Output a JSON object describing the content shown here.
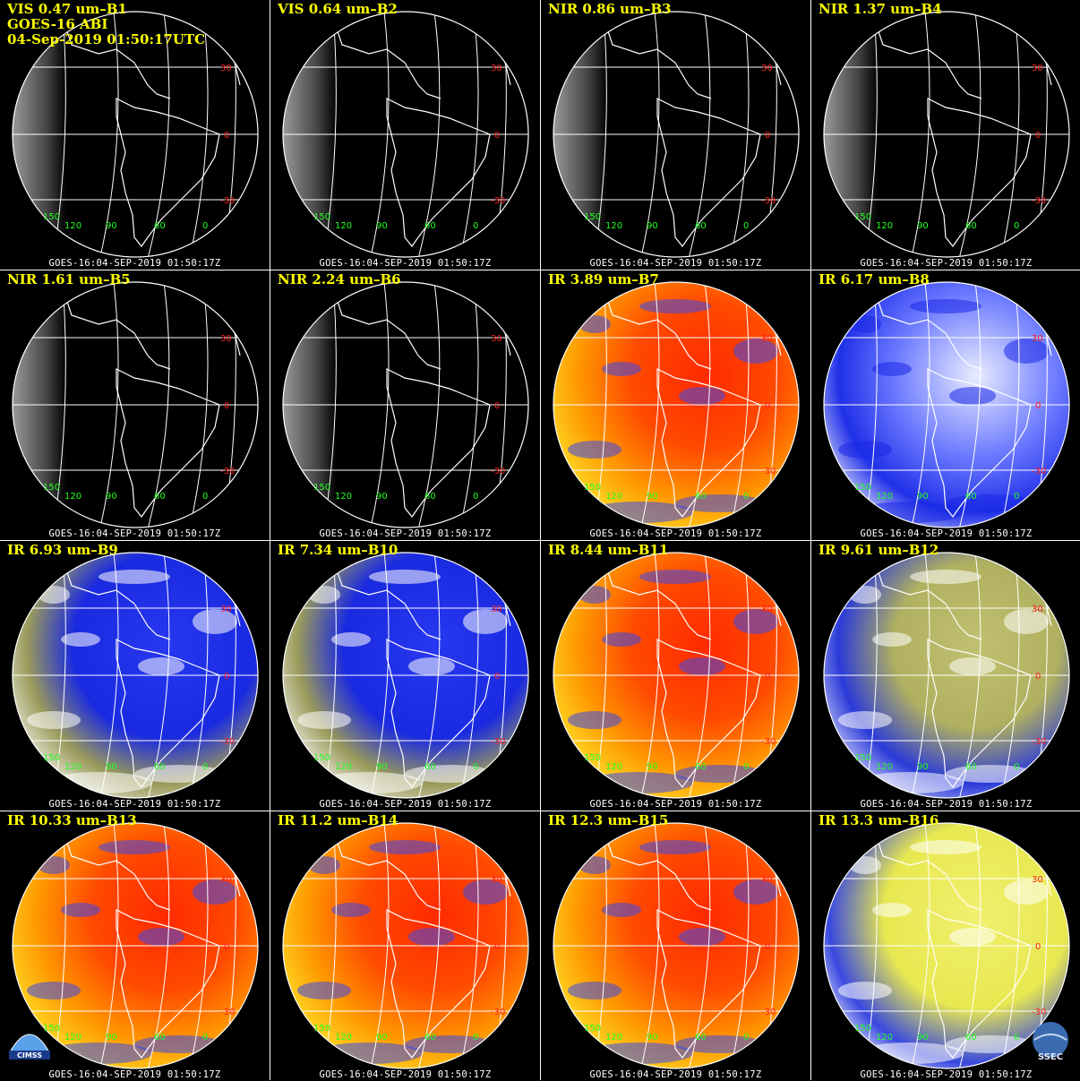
{
  "header": {
    "instrument": "GOES-16 ABI",
    "datetime": "04-Sep-2019 01:50:17UTC"
  },
  "grid_labels": {
    "lat": [
      "30",
      "0",
      "-30"
    ],
    "lon": [
      "150",
      "120",
      "90",
      "60",
      "0"
    ]
  },
  "colors": {
    "title": "#ffff00",
    "lat_label": "#ff2020",
    "lon_label": "#20ff20",
    "gridlines": "#ffffff",
    "panel_divider": "#ffffff"
  },
  "logos": {
    "left": "CIMSS",
    "right": "SSEC"
  },
  "panels": [
    {
      "title": "VIS 0.47 um–B1",
      "footer": "GOES-16:04-SEP-2019 01:50:17Z",
      "palette": "vis"
    },
    {
      "title": "VIS 0.64 um–B2",
      "footer": "GOES-16:04-SEP-2019 01:50:17Z",
      "palette": "vis"
    },
    {
      "title": "NIR 0.86 um–B3",
      "footer": "GOES-16:04-SEP-2019 01:50:17Z",
      "palette": "vis"
    },
    {
      "title": "NIR 1.37 um–B4",
      "footer": "GOES-16:04-SEP-2019 01:50:17Z",
      "palette": "vis-dim"
    },
    {
      "title": "NIR 1.61 um–B5",
      "footer": "GOES-16:04-SEP-2019 01:50:17Z",
      "palette": "vis"
    },
    {
      "title": "NIR 2.24 um–B6",
      "footer": "GOES-16:04-SEP-2019 01:50:17Z",
      "palette": "vis"
    },
    {
      "title": "IR 3.89 um–B7",
      "footer": "GOES-16:04-SEP-2019 01:50:17Z",
      "palette": "ir-warm"
    },
    {
      "title": "IR 6.17 um–B8",
      "footer": "GOES-16:04-SEP-2019 01:50:17Z",
      "palette": "wv-light"
    },
    {
      "title": "IR 6.93 um–B9",
      "footer": "GOES-16:04-SEP-2019 01:50:17Z",
      "palette": "wv-blue"
    },
    {
      "title": "IR 7.34 um–B10",
      "footer": "GOES-16:04-SEP-2019 01:50:17Z",
      "palette": "wv-blue"
    },
    {
      "title": "IR 8.44 um–B11",
      "footer": "GOES-16:04-SEP-2019 01:50:17Z",
      "palette": "ir-warm"
    },
    {
      "title": "IR 9.61 um–B12",
      "footer": "GOES-16:04-SEP-2019 01:50:17Z",
      "palette": "ozone"
    },
    {
      "title": "IR 10.33 um–B13",
      "footer": "GOES-16:04-SEP-2019 01:50:17Z",
      "palette": "ir-warm"
    },
    {
      "title": "IR 11.2 um–B14",
      "footer": "GOES-16:04-SEP-2019 01:50:17Z",
      "palette": "ir-warm"
    },
    {
      "title": "IR 12.3 um–B15",
      "footer": "GOES-16:04-SEP-2019 01:50:17Z",
      "palette": "ir-warm"
    },
    {
      "title": "IR 13.3 um–B16",
      "footer": "GOES-16:04-SEP-2019 01:50:17Z",
      "palette": "co2"
    }
  ]
}
